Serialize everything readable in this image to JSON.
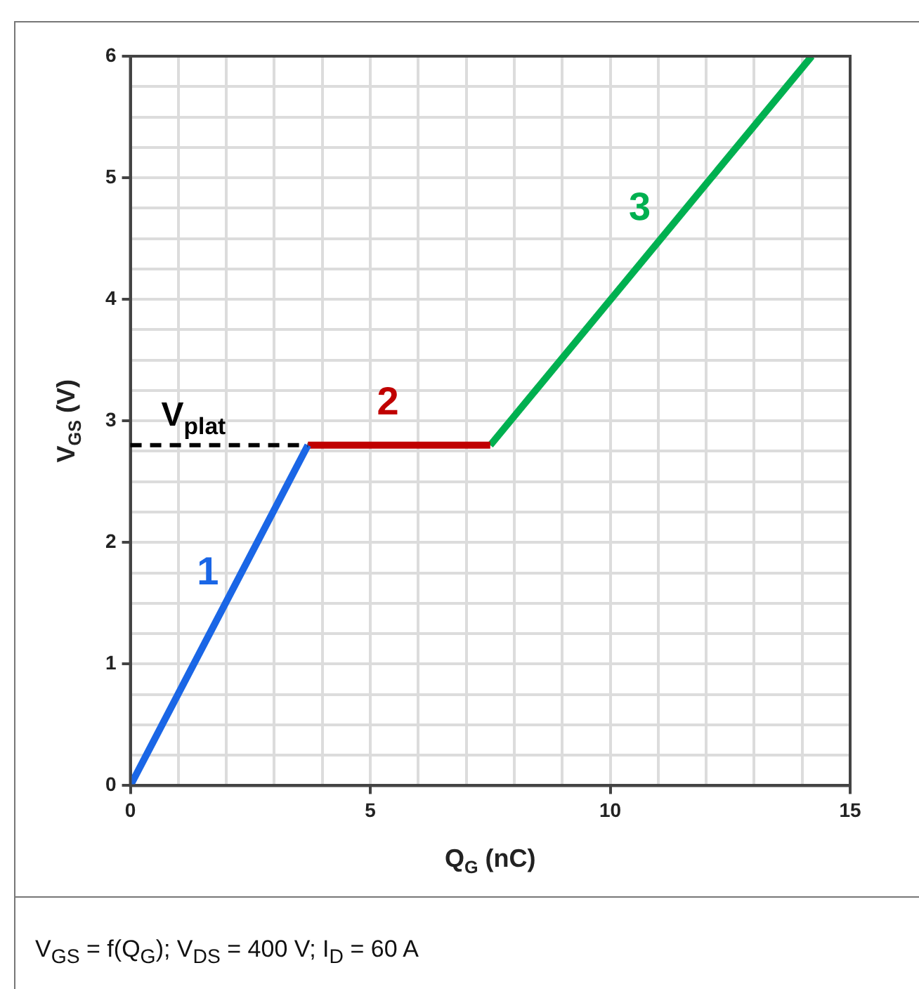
{
  "chart_data": {
    "type": "line",
    "xlabel": "Q$_{G}$ (nC)",
    "ylabel": "V$_{GS}$ (V)",
    "xlim": [
      0,
      15
    ],
    "ylim": [
      0,
      6
    ],
    "xticks": [
      0,
      {
        "value": 1,
        "label": null
      },
      {
        "value": 2,
        "label": null
      },
      {
        "value": 3,
        "label": null
      },
      {
        "value": 4,
        "label": null
      },
      5,
      {
        "value": 6,
        "label": null
      },
      {
        "value": 7,
        "label": null
      },
      {
        "value": 8,
        "label": null
      },
      {
        "value": 9,
        "label": null
      },
      10,
      {
        "value": 11,
        "label": null
      },
      {
        "value": 12,
        "label": null
      },
      {
        "value": 13,
        "label": null
      },
      {
        "value": 14,
        "label": null
      },
      15
    ],
    "yticks": [
      0,
      {
        "value": 0.25,
        "label": null
      },
      {
        "value": 0.5,
        "label": null
      },
      {
        "value": 0.75,
        "label": null
      },
      1,
      {
        "value": 1.25,
        "label": null
      },
      {
        "value": 1.5,
        "label": null
      },
      {
        "value": 1.75,
        "label": null
      },
      2,
      {
        "value": 2.25,
        "label": null
      },
      {
        "value": 2.5,
        "label": null
      },
      {
        "value": 2.75,
        "label": null
      },
      3,
      {
        "value": 3.25,
        "label": null
      },
      {
        "value": 3.5,
        "label": null
      },
      {
        "value": 3.75,
        "label": null
      },
      4,
      {
        "value": 4.25,
        "label": null
      },
      {
        "value": 4.5,
        "label": null
      },
      {
        "value": 4.75,
        "label": null
      },
      5,
      {
        "value": 5.25,
        "label": null
      },
      {
        "value": 5.5,
        "label": null
      },
      {
        "value": 5.75,
        "label": null
      },
      6
    ],
    "series": [
      {
        "name": "1",
        "color": "#1a66e6",
        "x": [
          0,
          3.7
        ],
        "values": [
          0,
          2.8
        ]
      },
      {
        "name": "2",
        "color": "#c00000",
        "x": [
          3.7,
          7.5
        ],
        "values": [
          2.8,
          2.8
        ]
      },
      {
        "name": "3",
        "color": "#00b050",
        "x": [
          7.5,
          14.2
        ],
        "values": [
          2.8,
          6
        ]
      }
    ],
    "ref_lines": [
      {
        "axis": "y",
        "value": 2.8,
        "label": "V$_{plat}$",
        "color": "#000000",
        "line_style": "dashed"
      }
    ],
    "grid": true,
    "legend": false,
    "marker": "none",
    "line_style": "solid",
    "annotations": [
      "V$_{GS}$ = f(Q$_{G}$); V$_{DS}$ = 400 V; I$_{D}$ = 60 A"
    ]
  }
}
